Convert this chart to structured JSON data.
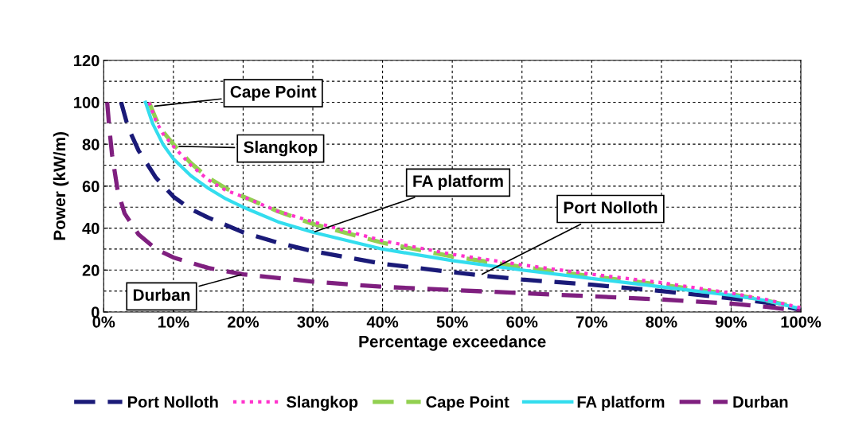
{
  "chart_data": {
    "type": "line",
    "xlabel": "Percentage exceedance",
    "ylabel": "Power (kW/m)",
    "xlim": [
      0,
      100
    ],
    "ylim": [
      0,
      120
    ],
    "xticks": [
      {
        "value": 0,
        "label": "0%"
      },
      {
        "value": 10,
        "label": "10%"
      },
      {
        "value": 20,
        "label": "20%"
      },
      {
        "value": 30,
        "label": "30%"
      },
      {
        "value": 40,
        "label": "40%"
      },
      {
        "value": 50,
        "label": "50%"
      },
      {
        "value": 60,
        "label": "60%"
      },
      {
        "value": 70,
        "label": "70%"
      },
      {
        "value": 80,
        "label": "80%"
      },
      {
        "value": 90,
        "label": "90%"
      },
      {
        "value": 100,
        "label": "100%"
      }
    ],
    "yticks": [
      0,
      20,
      40,
      60,
      80,
      100,
      120
    ],
    "grid": true,
    "legend": "bottom",
    "marker": "none",
    "series": [
      {
        "name": "Port Nolloth",
        "color": "#1a1a78",
        "line_style": "dashed",
        "x": [
          2.5,
          3.5,
          5,
          7.5,
          10,
          12.5,
          15,
          20,
          25,
          30,
          40,
          50,
          54,
          60,
          70,
          80,
          90,
          95,
          100
        ],
        "values": [
          100,
          88,
          77,
          64,
          55,
          49,
          45,
          38,
          33,
          29,
          23,
          19,
          17.5,
          15.5,
          13,
          10,
          6.5,
          4.5,
          1
        ]
      },
      {
        "name": "Slangkop",
        "color": "#ff33cc",
        "line_style": "dotted",
        "x": [
          6.5,
          7.5,
          8.5,
          10,
          12.5,
          15,
          17.5,
          20,
          25,
          30,
          40,
          50,
          60,
          70,
          80,
          90,
          95,
          100
        ],
        "values": [
          100,
          91,
          85,
          79,
          70,
          63,
          58,
          55,
          48,
          43,
          34,
          27.5,
          22.5,
          18,
          14,
          9,
          6,
          2
        ]
      },
      {
        "name": "Cape Point",
        "color": "#92d050",
        "line_style": "dashed",
        "x": [
          6.5,
          7.5,
          8.5,
          10,
          12.5,
          15,
          17.5,
          20,
          25,
          30,
          40,
          50,
          60,
          70,
          80,
          90,
          95,
          100
        ],
        "values": [
          100,
          92,
          86,
          80,
          71,
          64,
          59,
          55,
          48,
          42,
          33,
          26.5,
          21.5,
          17,
          13,
          8.5,
          5.5,
          2
        ]
      },
      {
        "name": "FA platform",
        "color": "#33ddee",
        "line_style": "solid",
        "x": [
          6,
          7,
          8.5,
          10,
          12.5,
          15,
          17.5,
          20,
          25,
          30,
          40,
          50,
          60,
          70,
          80,
          90,
          95,
          100
        ],
        "values": [
          100,
          90,
          80,
          73,
          65,
          59,
          54,
          50,
          43,
          38,
          30,
          24.5,
          20,
          16,
          12,
          8,
          5.5,
          1.5
        ]
      },
      {
        "name": "Durban",
        "color": "#7f1f7f",
        "line_style": "dashed",
        "x": [
          0.5,
          0.8,
          1.2,
          2,
          3,
          5,
          7.5,
          10,
          15,
          20,
          30,
          40,
          50,
          60,
          70,
          80,
          90,
          95,
          100
        ],
        "values": [
          100,
          88,
          75,
          58,
          47,
          37,
          30,
          26,
          21,
          18,
          14.5,
          12,
          10.5,
          9,
          7.5,
          6,
          4,
          2.5,
          0.5
        ]
      }
    ],
    "annotations": [
      {
        "text": "Cape Point",
        "x": 7,
        "y": 98
      },
      {
        "text": "Slangkop",
        "x": 10.5,
        "y": 79
      },
      {
        "text": "FA platform",
        "x": 30,
        "y": 38
      },
      {
        "text": "Port Nolloth",
        "x": 54,
        "y": 17.5
      },
      {
        "text": "Durban",
        "x": 20,
        "y": 18
      }
    ]
  }
}
